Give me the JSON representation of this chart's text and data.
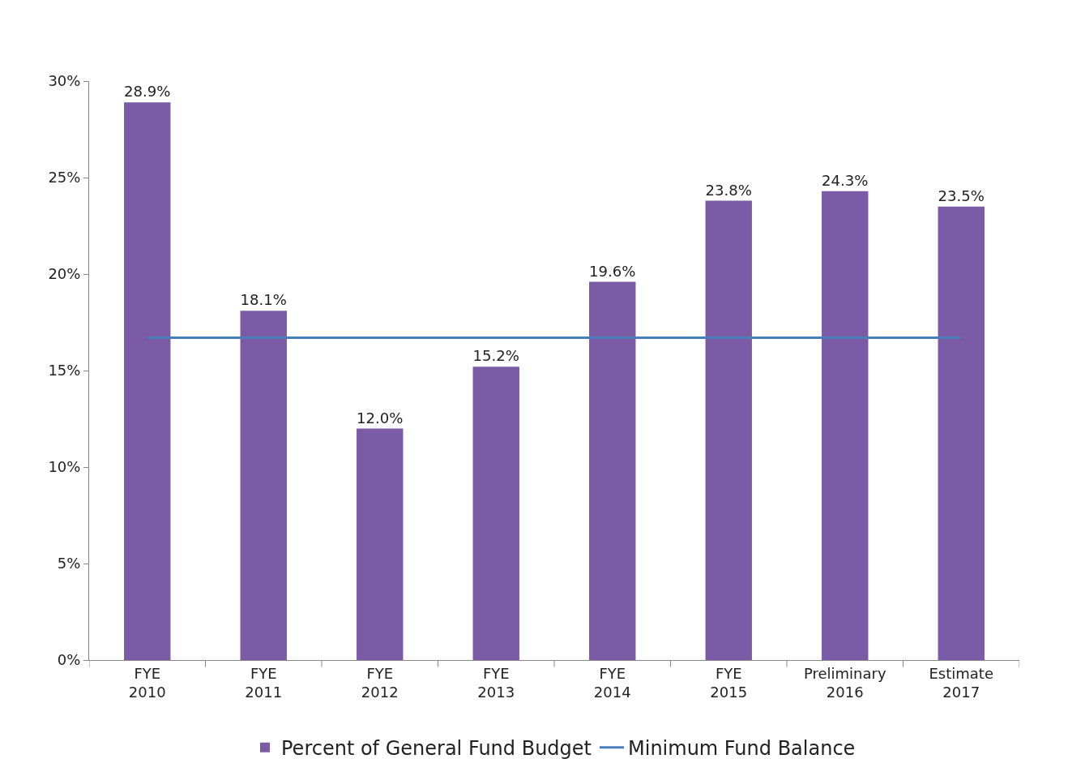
{
  "chart_data": {
    "type": "bar",
    "categories": [
      "FYE\n2010",
      "FYE\n2011",
      "FYE\n2012",
      "FYE\n2013",
      "FYE\n2014",
      "FYE\n2015",
      "Preliminary\n2016",
      "Estimate\n2017"
    ],
    "series": [
      {
        "name": "Percent of General Fund Budget",
        "color": "#7b5ba6",
        "values": [
          28.9,
          18.1,
          12.0,
          15.2,
          19.6,
          23.8,
          24.3,
          23.5
        ],
        "value_labels": [
          "28.9%",
          "18.1%",
          "12.0%",
          "15.2%",
          "19.6%",
          "23.8%",
          "24.3%",
          "23.5%"
        ]
      },
      {
        "name": "Minimum Fund Balance",
        "type": "line",
        "color": "#4a7ebb",
        "values": [
          16.7,
          16.7,
          16.7,
          16.7,
          16.7,
          16.7,
          16.7,
          16.7
        ]
      }
    ],
    "ylim": [
      0,
      30
    ],
    "yticks": [
      {
        "value": 0,
        "label": "0%"
      },
      {
        "value": 5,
        "label": "5%"
      },
      {
        "value": 10,
        "label": "10%"
      },
      {
        "value": 15,
        "label": "15%"
      },
      {
        "value": 20,
        "label": "20%"
      },
      {
        "value": 25,
        "label": "25%"
      },
      {
        "value": 30,
        "label": "30%"
      }
    ],
    "legend": "bottom",
    "marker": "none",
    "line_style": "solid"
  }
}
